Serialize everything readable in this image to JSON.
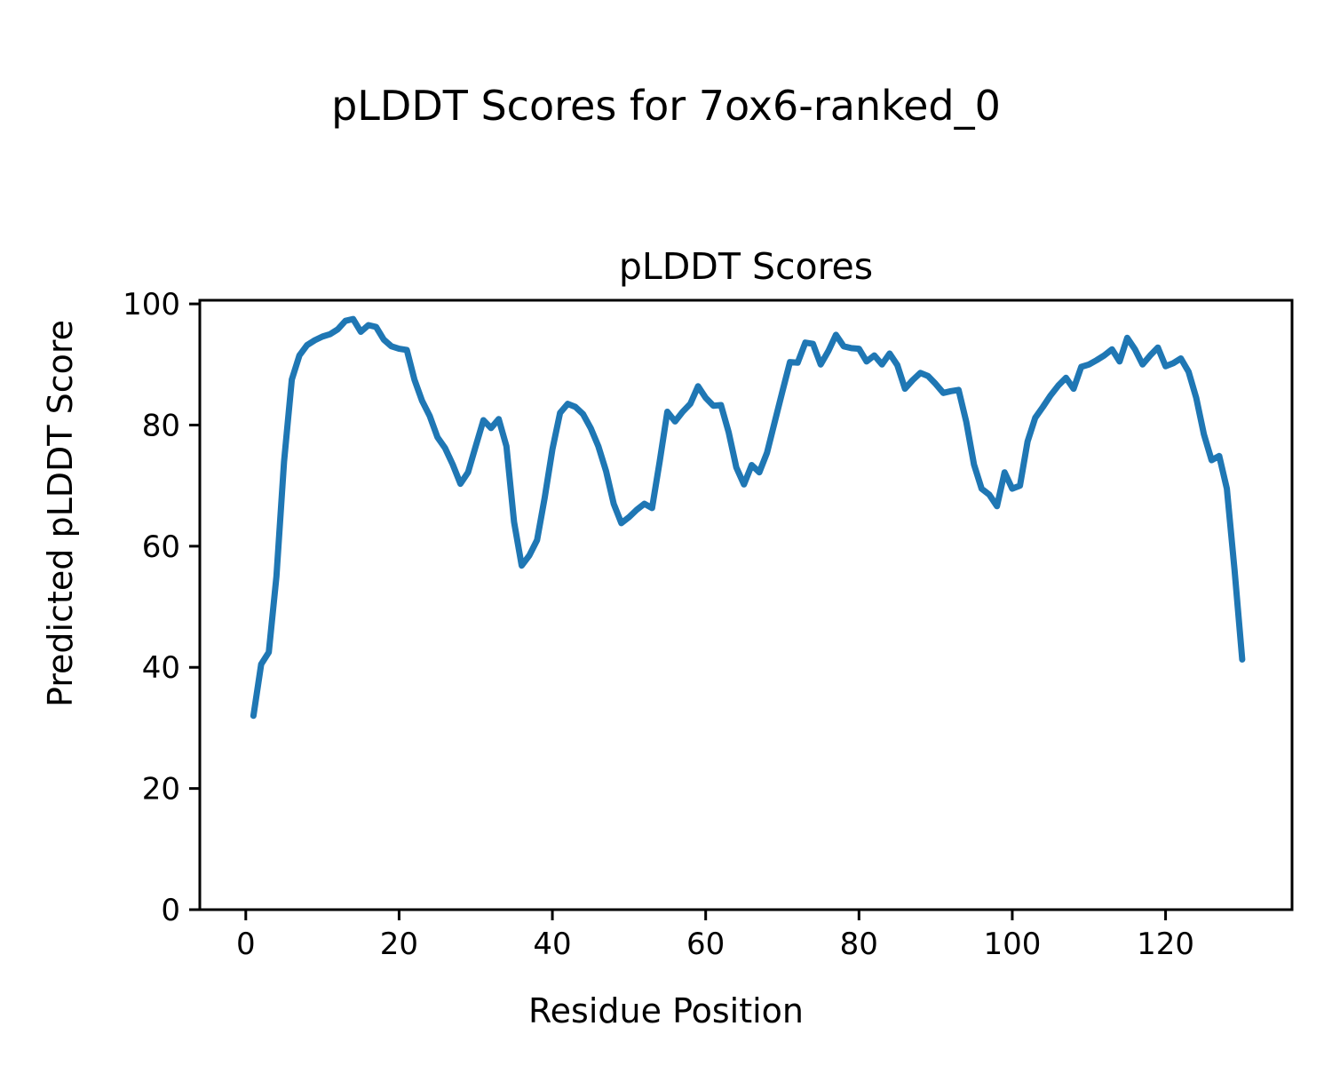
{
  "figure": {
    "background": "#ffffff",
    "text_color": "#000000",
    "spine_color": "#000000"
  },
  "chart_data": {
    "type": "line",
    "suptitle": "pLDDT Scores for 7ox6-ranked_0",
    "title": "pLDDT Scores",
    "xlabel": "Residue Position",
    "ylabel": "Predicted pLDDT Score",
    "x_ticks": [
      0,
      20,
      40,
      60,
      80,
      100,
      120
    ],
    "y_ticks": [
      0,
      20,
      40,
      60,
      80,
      100
    ],
    "xlim": [
      -6,
      136.5
    ],
    "ylim": [
      0,
      100.6
    ],
    "grid": false,
    "legend": null,
    "series": [
      {
        "name": "pLDDT",
        "color": "#1f77b4",
        "x_start": 1,
        "x_step": 1,
        "values": [
          32.0,
          40.5,
          42.5,
          55.0,
          74.0,
          87.5,
          91.5,
          93.2,
          94.0,
          94.6,
          95.0,
          95.8,
          97.2,
          97.5,
          95.4,
          96.5,
          96.2,
          94.1,
          93.0,
          92.6,
          92.4,
          87.5,
          84.0,
          81.5,
          78.0,
          76.2,
          73.5,
          70.3,
          72.2,
          76.5,
          80.8,
          79.5,
          81.0,
          76.5,
          64.0,
          56.8,
          58.5,
          61.0,
          68.0,
          76.0,
          82.0,
          83.5,
          83.0,
          81.8,
          79.5,
          76.5,
          72.4,
          67.0,
          63.8,
          64.8,
          66.0,
          67.0,
          66.3,
          74.0,
          82.2,
          80.6,
          82.2,
          83.5,
          86.4,
          84.5,
          83.2,
          83.3,
          78.8,
          73.0,
          70.2,
          73.4,
          72.2,
          75.4,
          80.5,
          85.5,
          90.4,
          90.3,
          93.6,
          93.4,
          90.0,
          92.2,
          94.9,
          93.0,
          92.7,
          92.6,
          90.5,
          91.5,
          90.0,
          91.8,
          89.9,
          86.0,
          87.4,
          88.6,
          88.1,
          86.8,
          85.3,
          85.6,
          85.8,
          80.5,
          73.5,
          69.5,
          68.5,
          66.6,
          72.2,
          69.5,
          70.0,
          77.3,
          81.2,
          83.0,
          84.9,
          86.5,
          87.8,
          86.0,
          89.6,
          90.0,
          90.7,
          91.5,
          92.5,
          90.5,
          94.4,
          92.5,
          90.0,
          91.5,
          92.8,
          89.7,
          90.2,
          91.0,
          88.8,
          84.5,
          78.5,
          74.2,
          74.9,
          69.5,
          56.0,
          41.3
        ]
      }
    ]
  }
}
